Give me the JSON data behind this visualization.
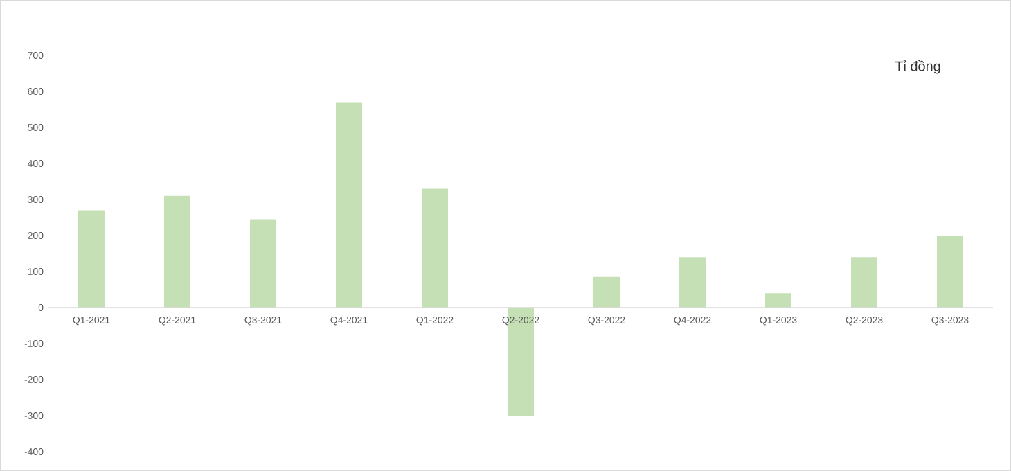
{
  "chart_data": {
    "type": "bar",
    "categories": [
      "Q1-2021",
      "Q2-2021",
      "Q3-2021",
      "Q4-2021",
      "Q1-2022",
      "Q2-2022",
      "Q3-2022",
      "Q4-2022",
      "Q1-2023",
      "Q2-2023",
      "Q3-2023"
    ],
    "values": [
      270,
      310,
      245,
      570,
      330,
      -300,
      85,
      140,
      40,
      140,
      200
    ],
    "color": "#c5e0b4",
    "ylim": [
      -400,
      700
    ],
    "yticks": [
      -400,
      -300,
      -200,
      -100,
      0,
      100,
      200,
      300,
      400,
      500,
      600,
      700
    ],
    "annotations": [
      "Tỉ đồng"
    ]
  }
}
